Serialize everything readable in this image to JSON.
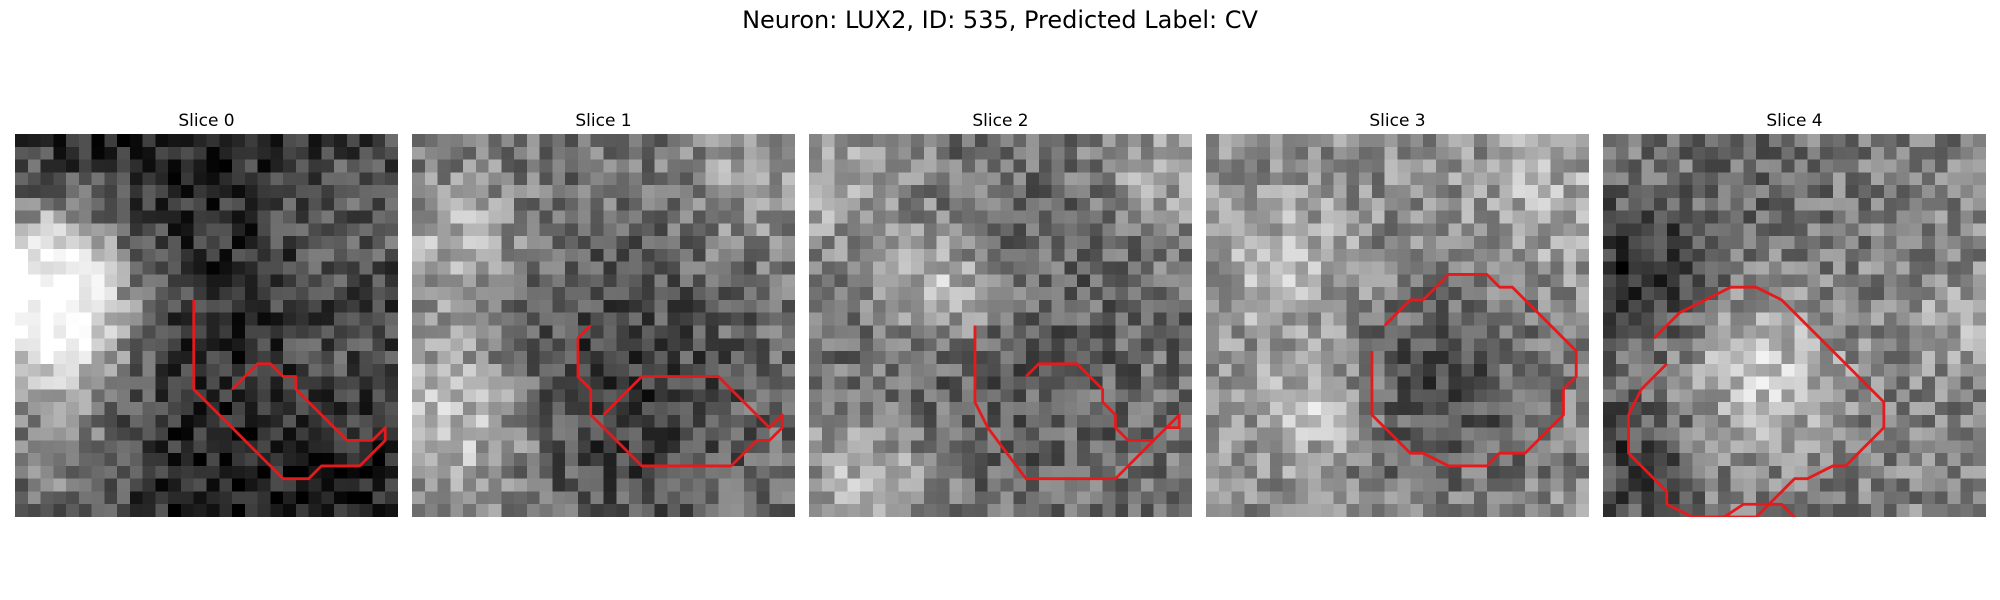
{
  "figure": {
    "title": "Neuron: LUX2, ID: 535, Predicted Label: CV",
    "contour_color": "#e41a1c",
    "colormap": "grayscale",
    "grid_size": 30
  },
  "panels": [
    {
      "title": "Slice 0",
      "seed": 11,
      "base": 0.12,
      "blobs": [
        [
          1,
          10,
          0.5,
          5
        ],
        [
          3,
          14,
          0.6,
          5
        ],
        [
          2,
          26,
          0.35,
          5
        ],
        [
          27,
          6,
          0.25,
          6
        ],
        [
          25,
          18,
          0.15,
          4
        ]
      ],
      "contour": [
        [
          14,
          13
        ],
        [
          14,
          20
        ],
        [
          20,
          26
        ],
        [
          21,
          27
        ],
        [
          23,
          27
        ],
        [
          24,
          26
        ],
        [
          27,
          26
        ],
        [
          28,
          25
        ],
        [
          29,
          24
        ],
        [
          29,
          23
        ],
        [
          28,
          24
        ],
        [
          26,
          24
        ],
        [
          25,
          23
        ],
        [
          24,
          22
        ],
        [
          22,
          20
        ],
        [
          22,
          19
        ],
        [
          21,
          19
        ],
        [
          20,
          18
        ],
        [
          19,
          18
        ],
        [
          18,
          19
        ],
        [
          17,
          20
        ]
      ],
      "extra": []
    },
    {
      "title": "Slice 1",
      "seed": 23,
      "base": 0.45,
      "blobs": [
        [
          15,
          20,
          -0.25,
          7
        ],
        [
          3,
          8,
          0.25,
          4
        ],
        [
          3,
          22,
          0.35,
          5
        ],
        [
          27,
          3,
          0.2,
          4
        ]
      ],
      "contour": [
        [
          14,
          15
        ],
        [
          13,
          16
        ],
        [
          13,
          19
        ],
        [
          14,
          20
        ],
        [
          14,
          22
        ],
        [
          15,
          23
        ],
        [
          17,
          25
        ],
        [
          18,
          26
        ],
        [
          25,
          26
        ],
        [
          26,
          25
        ],
        [
          27,
          24
        ],
        [
          28,
          24
        ],
        [
          29,
          23
        ],
        [
          29,
          22
        ],
        [
          28,
          23
        ],
        [
          26,
          21
        ],
        [
          25,
          20
        ],
        [
          24,
          19
        ],
        [
          18,
          19
        ],
        [
          17,
          20
        ],
        [
          15,
          22
        ]
      ],
      "extra": []
    },
    {
      "title": "Slice 2",
      "seed": 37,
      "base": 0.45,
      "blobs": [
        [
          15,
          18,
          -0.1,
          8
        ],
        [
          10,
          12,
          0.35,
          3
        ],
        [
          4,
          27,
          0.3,
          4
        ],
        [
          27,
          3,
          0.2,
          3
        ],
        [
          2,
          3,
          0.25,
          4
        ]
      ],
      "contour": [
        [
          13,
          15
        ],
        [
          13,
          21
        ],
        [
          14,
          23
        ],
        [
          17,
          27
        ],
        [
          24,
          27
        ],
        [
          25,
          26
        ],
        [
          27,
          24
        ],
        [
          28,
          23
        ],
        [
          29,
          23
        ],
        [
          29,
          22
        ],
        [
          28,
          23
        ],
        [
          27,
          24
        ],
        [
          25,
          24
        ],
        [
          24,
          23
        ],
        [
          24,
          22
        ],
        [
          23,
          21
        ],
        [
          23,
          20
        ],
        [
          22,
          19
        ],
        [
          21,
          18
        ],
        [
          18,
          18
        ],
        [
          17,
          19
        ]
      ],
      "extra": []
    },
    {
      "title": "Slice 3",
      "seed": 51,
      "base": 0.55,
      "blobs": [
        [
          18,
          19,
          -0.25,
          6
        ],
        [
          6,
          10,
          0.2,
          4
        ],
        [
          8,
          21,
          0.25,
          3
        ],
        [
          26,
          5,
          0.15,
          4
        ]
      ],
      "contour": [
        [
          13,
          17
        ],
        [
          13,
          22
        ],
        [
          16,
          25
        ],
        [
          17,
          25
        ],
        [
          19,
          26
        ],
        [
          22,
          26
        ],
        [
          23,
          25
        ],
        [
          25,
          25
        ],
        [
          27,
          23
        ],
        [
          28,
          22
        ],
        [
          28,
          20
        ],
        [
          29,
          19
        ],
        [
          29,
          17
        ],
        [
          28,
          16
        ],
        [
          27,
          15
        ],
        [
          26,
          14
        ],
        [
          25,
          13
        ],
        [
          24,
          12
        ],
        [
          23,
          12
        ],
        [
          22,
          11
        ],
        [
          19,
          11
        ],
        [
          18,
          12
        ],
        [
          17,
          13
        ],
        [
          16,
          13
        ],
        [
          14,
          15
        ]
      ],
      "extra": []
    },
    {
      "title": "Slice 4",
      "seed": 67,
      "base": 0.5,
      "blobs": [
        [
          12,
          18,
          0.3,
          4
        ],
        [
          2,
          10,
          -0.35,
          4
        ],
        [
          1,
          25,
          -0.25,
          4
        ],
        [
          12,
          3,
          -0.1,
          4
        ],
        [
          27,
          14,
          0.15,
          3
        ]
      ],
      "contour": [
        [
          5,
          18
        ],
        [
          4,
          19
        ],
        [
          3,
          20
        ],
        [
          2,
          22
        ],
        [
          2,
          25
        ],
        [
          3,
          26
        ],
        [
          4,
          27
        ],
        [
          5,
          28
        ],
        [
          5,
          29
        ],
        [
          7,
          30
        ],
        [
          12,
          30
        ],
        [
          13,
          29
        ],
        [
          14,
          28
        ],
        [
          15,
          27
        ],
        [
          16,
          27
        ],
        [
          18,
          26
        ],
        [
          19,
          26
        ],
        [
          20,
          25
        ],
        [
          22,
          23
        ],
        [
          22,
          21
        ],
        [
          21,
          20
        ],
        [
          20,
          19
        ],
        [
          18,
          17
        ],
        [
          17,
          16
        ],
        [
          14,
          13
        ],
        [
          12,
          12
        ],
        [
          10,
          12
        ],
        [
          8,
          13
        ],
        [
          6,
          14
        ],
        [
          4,
          16
        ]
      ],
      "extra": [
        [
          [
            8,
            31
          ],
          [
            11,
            29
          ],
          [
            14,
            29
          ],
          [
            15,
            30
          ],
          [
            14,
            31
          ]
        ]
      ]
    }
  ]
}
